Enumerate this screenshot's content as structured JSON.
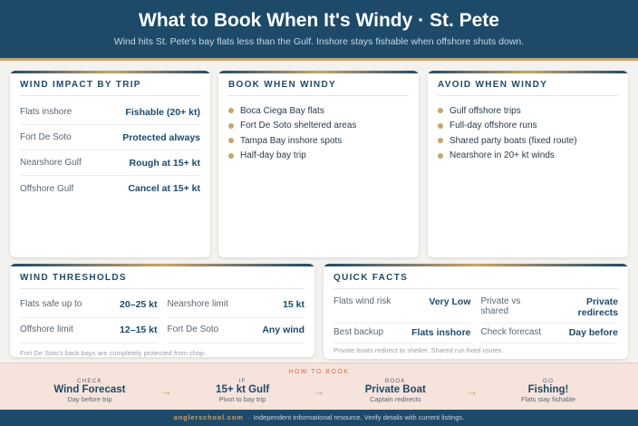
{
  "header": {
    "title": "What to Book When It's Windy · St. Pete",
    "subtitle": "Wind hits St. Pete's bay flats less than the Gulf. Inshore stays fishable when offshore shuts down."
  },
  "impact": {
    "title": "WIND IMPACT BY TRIP",
    "rows": [
      {
        "k": "Flats inshore",
        "v": "Fishable (20+ kt)"
      },
      {
        "k": "Fort De Soto",
        "v": "Protected always"
      },
      {
        "k": "Nearshore Gulf",
        "v": "Rough at 15+ kt"
      },
      {
        "k": "Offshore Gulf",
        "v": "Cancel at 15+ kt"
      }
    ]
  },
  "book": {
    "title": "BOOK WHEN WINDY",
    "items": [
      "Boca Ciega Bay flats",
      "Fort De Soto sheltered areas",
      "Tampa Bay inshore spots",
      "Half-day bay trip"
    ]
  },
  "avoid": {
    "title": "AVOID WHEN WINDY",
    "items": [
      "Gulf offshore trips",
      "Full-day offshore runs",
      "Shared party boats (fixed route)",
      "Nearshore in 20+ kt winds"
    ]
  },
  "thresholds": {
    "title": "WIND THRESHOLDS",
    "cells": [
      {
        "k": "Flats safe up to",
        "v": "20–25 kt"
      },
      {
        "k": "Nearshore limit",
        "v": "15 kt"
      },
      {
        "k": "Offshore limit",
        "v": "12–15 kt"
      },
      {
        "k": "Fort De Soto",
        "v": "Any wind"
      }
    ],
    "note": "Fort De Soto's back bays are completely protected from chop."
  },
  "facts": {
    "title": "QUICK FACTS",
    "cells": [
      {
        "k": "Flats wind risk",
        "v": "Very Low"
      },
      {
        "k": "Private vs shared",
        "v": "Private redirects"
      },
      {
        "k": "Best backup",
        "v": "Flats inshore"
      },
      {
        "k": "Check forecast",
        "v": "Day before"
      }
    ],
    "note": "Private boats redirect to shelter. Shared run fixed routes."
  },
  "how": {
    "title": "HOW TO BOOK",
    "steps": [
      {
        "l": "CHECK",
        "m": "Wind Forecast",
        "s": "Day before trip"
      },
      {
        "l": "IF",
        "m": "15+ kt Gulf",
        "s": "Pivot to bay trip"
      },
      {
        "l": "BOOK",
        "m": "Private Boat",
        "s": "Captain redirects"
      },
      {
        "l": "GO",
        "m": "Fishing!",
        "s": "Flats stay fishable"
      }
    ]
  },
  "footer": {
    "brand": "anglerschool.com",
    "sep": "·",
    "text": "Independent informational resource. Verify details with current listings."
  },
  "colors": {
    "primary": "#1e4a6a",
    "accent": "#c9a46a",
    "band": "#f6e3dc"
  }
}
